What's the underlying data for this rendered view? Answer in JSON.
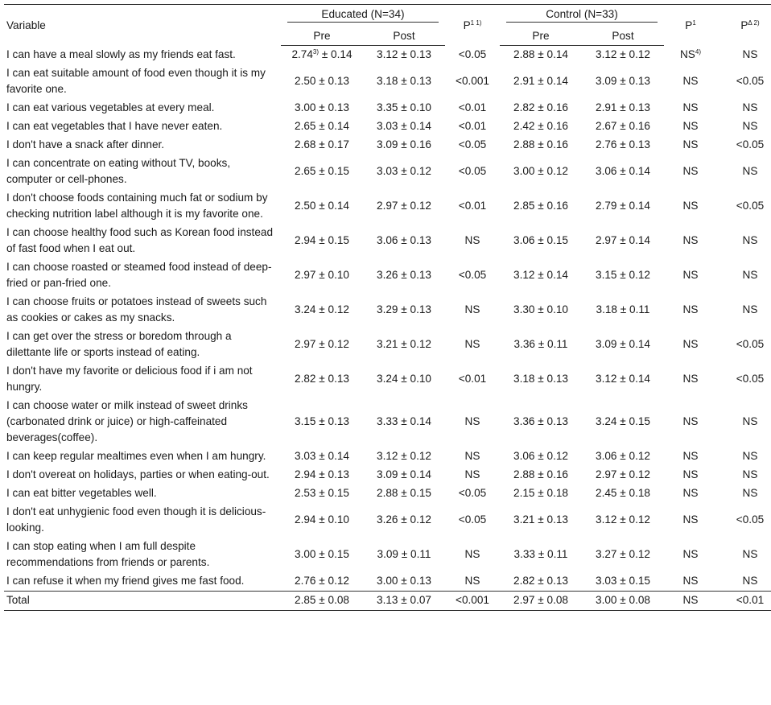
{
  "header": {
    "variable": "Variable",
    "educated": "Educated (N=34)",
    "control": "Control (N=33)",
    "pre": "Pre",
    "post": "Post",
    "p_edu": "P",
    "p_edu_sup": "1 1)",
    "p_ctrl": "P",
    "p_ctrl_sup": "1",
    "p_delta": "P",
    "p_delta_sup": "Δ 2)"
  },
  "rows": [
    {
      "variable": "I can have a meal slowly as my friends eat fast.",
      "edu_pre": "2.74",
      "edu_pre_sup": "3)",
      "edu_pre_sd": " ± 0.14",
      "edu_post": "3.12 ± 0.13",
      "p_edu": "<0.05",
      "ctrl_pre": "2.88 ± 0.14",
      "ctrl_post": "3.12 ± 0.12",
      "p_ctrl": "NS",
      "p_ctrl_sup": "4)",
      "p_delta": "NS"
    },
    {
      "variable": "I can eat suitable amount of food even though it is my favorite one.",
      "edu_pre": "2.50 ± 0.13",
      "edu_post": "3.18 ± 0.13",
      "p_edu": "<0.001",
      "ctrl_pre": "2.91 ± 0.14",
      "ctrl_post": "3.09 ± 0.13",
      "p_ctrl": "NS",
      "p_delta": "<0.05"
    },
    {
      "variable": "I can eat various vegetables at every meal.",
      "edu_pre": "3.00 ± 0.13",
      "edu_post": "3.35 ± 0.10",
      "p_edu": "<0.01",
      "ctrl_pre": "2.82 ± 0.16",
      "ctrl_post": "2.91 ± 0.13",
      "p_ctrl": "NS",
      "p_delta": "NS"
    },
    {
      "variable": "I can eat vegetables that I have never eaten.",
      "edu_pre": "2.65 ± 0.14",
      "edu_post": "3.03 ± 0.14",
      "p_edu": "<0.01",
      "ctrl_pre": "2.42 ± 0.16",
      "ctrl_post": "2.67 ± 0.16",
      "p_ctrl": "NS",
      "p_delta": "NS"
    },
    {
      "variable": "I don't have a snack after dinner.",
      "edu_pre": "2.68 ± 0.17",
      "edu_post": "3.09 ± 0.16",
      "p_edu": "<0.05",
      "ctrl_pre": "2.88 ± 0.16",
      "ctrl_post": "2.76 ± 0.13",
      "p_ctrl": "NS",
      "p_delta": "<0.05"
    },
    {
      "variable": "I can concentrate on eating without TV, books, computer or cell-phones.",
      "edu_pre": "2.65 ± 0.15",
      "edu_post": "3.03 ± 0.12",
      "p_edu": "<0.05",
      "ctrl_pre": "3.00 ± 0.12",
      "ctrl_post": "3.06 ± 0.14",
      "p_ctrl": "NS",
      "p_delta": "NS"
    },
    {
      "variable": "I don't choose foods containing much fat or sodium by checking nutrition label although it is my favorite one.",
      "edu_pre": "2.50 ± 0.14",
      "edu_post": "2.97 ± 0.12",
      "p_edu": "<0.01",
      "ctrl_pre": "2.85 ± 0.16",
      "ctrl_post": "2.79 ± 0.14",
      "p_ctrl": "NS",
      "p_delta": "<0.05"
    },
    {
      "variable": "I can choose healthy food such as Korean food instead of fast food when I eat out.",
      "edu_pre": "2.94 ± 0.15",
      "edu_post": "3.06 ± 0.13",
      "p_edu": "NS",
      "ctrl_pre": "3.06 ± 0.15",
      "ctrl_post": "2.97 ± 0.14",
      "p_ctrl": "NS",
      "p_delta": "NS"
    },
    {
      "variable": "I can choose roasted or steamed food instead of deep-fried or pan-fried one.",
      "edu_pre": "2.97 ± 0.10",
      "edu_post": "3.26 ± 0.13",
      "p_edu": "<0.05",
      "ctrl_pre": "3.12 ± 0.14",
      "ctrl_post": "3.15 ± 0.12",
      "p_ctrl": "NS",
      "p_delta": "NS"
    },
    {
      "variable": "I can choose fruits or potatoes instead of sweets such as cookies or cakes as my snacks.",
      "edu_pre": "3.24 ± 0.12",
      "edu_post": "3.29 ± 0.13",
      "p_edu": "NS",
      "ctrl_pre": "3.30 ± 0.10",
      "ctrl_post": "3.18 ± 0.11",
      "p_ctrl": "NS",
      "p_delta": "NS"
    },
    {
      "variable": "I can get over the stress or boredom through a dilettante life or sports instead of eating.",
      "edu_pre": "2.97 ± 0.12",
      "edu_post": "3.21 ± 0.12",
      "p_edu": "NS",
      "ctrl_pre": "3.36 ± 0.11",
      "ctrl_post": "3.09 ± 0.14",
      "p_ctrl": "NS",
      "p_delta": "<0.05"
    },
    {
      "variable": "I don't have my favorite or delicious food if i am not hungry.",
      "edu_pre": "2.82 ± 0.13",
      "edu_post": "3.24 ± 0.10",
      "p_edu": "<0.01",
      "ctrl_pre": "3.18 ± 0.13",
      "ctrl_post": "3.12 ± 0.14",
      "p_ctrl": "NS",
      "p_delta": "<0.05"
    },
    {
      "variable": "I can choose water or milk instead of sweet drinks (carbonated drink or juice) or high-caffeinated beverages(coffee).",
      "edu_pre": "3.15 ± 0.13",
      "edu_post": "3.33 ± 0.14",
      "p_edu": "NS",
      "ctrl_pre": "3.36 ± 0.13",
      "ctrl_post": "3.24 ± 0.15",
      "p_ctrl": "NS",
      "p_delta": "NS"
    },
    {
      "variable": "I can keep regular mealtimes even when I am hungry.",
      "edu_pre": "3.03 ± 0.14",
      "edu_post": "3.12 ± 0.12",
      "p_edu": "NS",
      "ctrl_pre": "3.06 ± 0.12",
      "ctrl_post": "3.06 ± 0.12",
      "p_ctrl": "NS",
      "p_delta": "NS"
    },
    {
      "variable": "I don't overeat on holidays, parties or when eating-out.",
      "edu_pre": "2.94 ± 0.13",
      "edu_post": "3.09 ± 0.14",
      "p_edu": "NS",
      "ctrl_pre": "2.88 ± 0.16",
      "ctrl_post": "2.97 ± 0.12",
      "p_ctrl": "NS",
      "p_delta": "NS"
    },
    {
      "variable": "I can eat bitter vegetables well.",
      "edu_pre": "2.53 ± 0.15",
      "edu_post": "2.88 ± 0.15",
      "p_edu": "<0.05",
      "ctrl_pre": "2.15 ± 0.18",
      "ctrl_post": "2.45 ± 0.18",
      "p_ctrl": "NS",
      "p_delta": "NS"
    },
    {
      "variable": "I don't eat unhygienic food even though it is delicious-looking.",
      "edu_pre": "2.94 ± 0.10",
      "edu_post": "3.26 ± 0.12",
      "p_edu": "<0.05",
      "ctrl_pre": "3.21 ± 0.13",
      "ctrl_post": "3.12 ± 0.12",
      "p_ctrl": "NS",
      "p_delta": "<0.05"
    },
    {
      "variable": "I can stop eating when I am full despite recommendations from friends or parents.",
      "edu_pre": "3.00 ± 0.15",
      "edu_post": "3.09 ± 0.11",
      "p_edu": "NS",
      "ctrl_pre": "3.33 ± 0.11",
      "ctrl_post": "3.27 ± 0.12",
      "p_ctrl": "NS",
      "p_delta": "NS"
    },
    {
      "variable": "I can refuse it when my friend gives me fast food.",
      "edu_pre": "2.76 ± 0.12",
      "edu_post": "3.00 ± 0.13",
      "p_edu": "NS",
      "ctrl_pre": "2.82 ± 0.13",
      "ctrl_post": "3.03 ± 0.15",
      "p_ctrl": "NS",
      "p_delta": "NS"
    }
  ],
  "total": {
    "variable": "Total",
    "edu_pre": "2.85 ± 0.08",
    "edu_post": "3.13 ± 0.07",
    "p_edu": "<0.001",
    "ctrl_pre": "2.97 ± 0.08",
    "ctrl_post": "3.00 ± 0.08",
    "p_ctrl": "NS",
    "p_delta": "<0.01"
  }
}
